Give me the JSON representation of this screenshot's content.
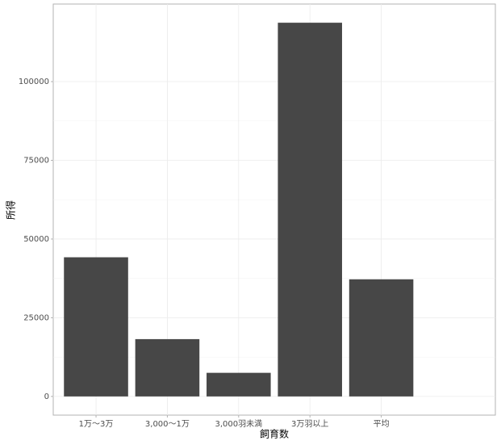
{
  "chart_data": {
    "type": "bar",
    "x_label": "飼育数",
    "y_label": "所得",
    "categories": [
      "1万〜3万",
      "3,000〜1万",
      "3,000羽未満",
      "3万羽以上",
      "平均"
    ],
    "values": [
      44200,
      18200,
      7500,
      118700,
      37200
    ],
    "color": "#474747",
    "ylim": [
      -5935,
      124635
    ],
    "yticks": [
      0,
      25000,
      50000,
      75000,
      100000
    ],
    "grid": true
  }
}
